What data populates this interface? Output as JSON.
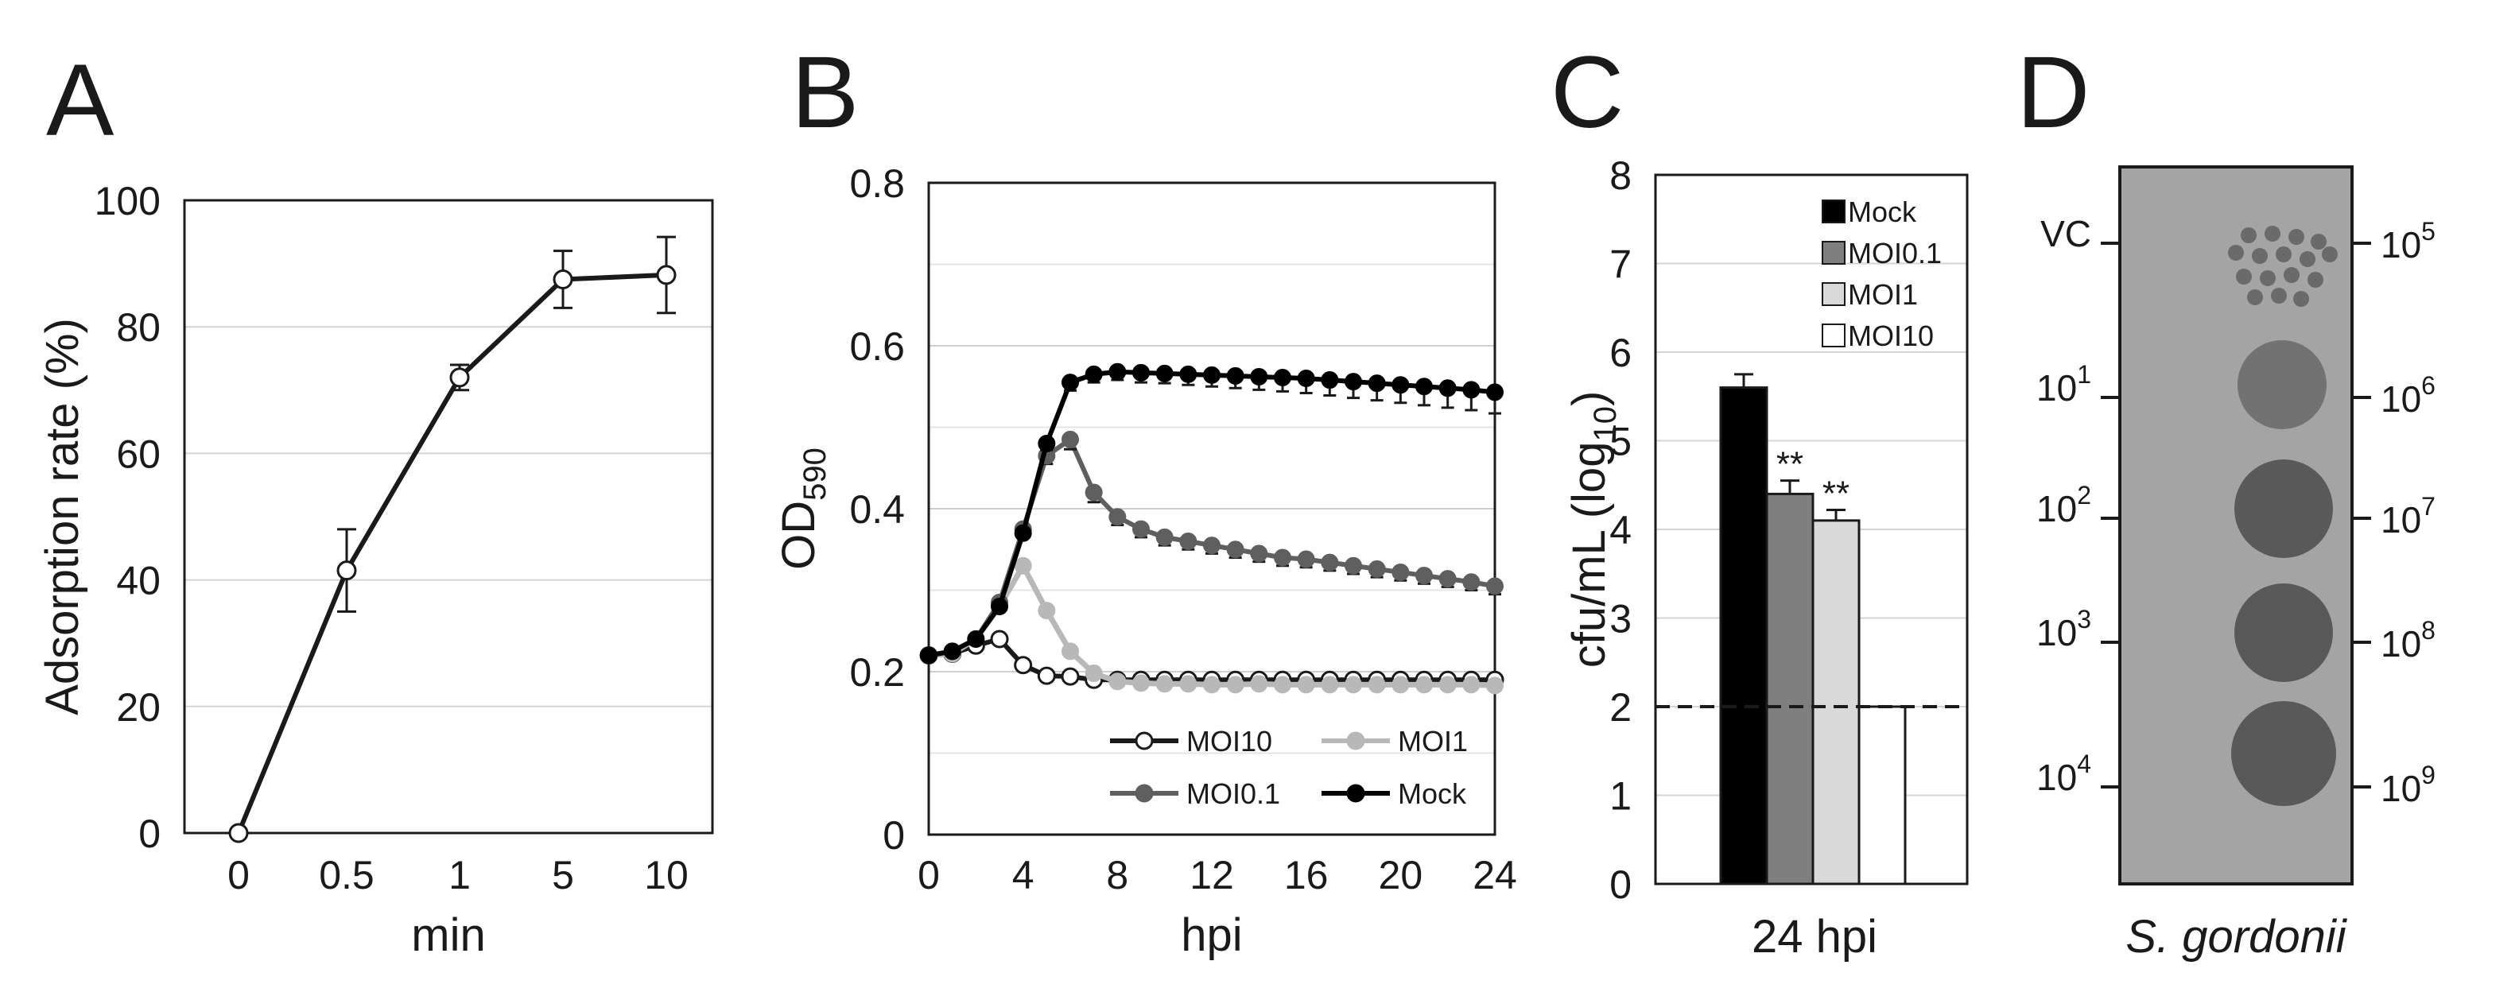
{
  "panels": {
    "A": {
      "letter": "A"
    },
    "B": {
      "letter": "B"
    },
    "C": {
      "letter": "C"
    },
    "D": {
      "letter": "D"
    }
  },
  "chart_data": [
    {
      "panel": "A",
      "type": "line",
      "categories": [
        "0",
        "0.5",
        "1",
        "5",
        "10"
      ],
      "series": [
        {
          "name": "Adsorption rate",
          "values": [
            0,
            41.5,
            72,
            87.5,
            88.2
          ],
          "errors": [
            0,
            6.5,
            2,
            4.5,
            6
          ]
        }
      ],
      "xlabel": "min",
      "ylabel": "Adsorption rate (%)",
      "ylim": [
        0,
        100
      ],
      "yticks": [
        0,
        20,
        40,
        60,
        80,
        100
      ],
      "grid": true
    },
    {
      "panel": "B",
      "type": "line",
      "x": [
        0,
        1,
        2,
        3,
        4,
        5,
        6,
        7,
        8,
        9,
        10,
        11,
        12,
        13,
        14,
        15,
        16,
        17,
        18,
        19,
        20,
        21,
        22,
        23,
        24
      ],
      "series": [
        {
          "name": "MOI10",
          "color": "#1a1a1a",
          "marker": "open-circle",
          "values": [
            0.22,
            0.222,
            0.232,
            0.24,
            0.208,
            0.195,
            0.194,
            0.19,
            0.19,
            0.19,
            0.19,
            0.19,
            0.19,
            0.19,
            0.19,
            0.19,
            0.19,
            0.19,
            0.19,
            0.19,
            0.19,
            0.19,
            0.19,
            0.19,
            0.19
          ]
        },
        {
          "name": "MOI1",
          "color": "#b8b8b8",
          "marker": "filled-circle",
          "values": [
            0.22,
            0.222,
            0.24,
            0.28,
            0.33,
            0.275,
            0.225,
            0.198,
            0.188,
            0.186,
            0.185,
            0.185,
            0.184,
            0.184,
            0.185,
            0.184,
            0.184,
            0.184,
            0.184,
            0.184,
            0.184,
            0.184,
            0.184,
            0.184,
            0.183
          ]
        },
        {
          "name": "MOI0.1",
          "color": "#5f5f5f",
          "marker": "filled-circle",
          "values": [
            0.22,
            0.225,
            0.24,
            0.285,
            0.375,
            0.465,
            0.485,
            0.42,
            0.39,
            0.375,
            0.365,
            0.36,
            0.355,
            0.35,
            0.345,
            0.34,
            0.338,
            0.334,
            0.33,
            0.326,
            0.322,
            0.318,
            0.314,
            0.31,
            0.305
          ],
          "errors": [
            0,
            0,
            0,
            0.005,
            0.008,
            0.01,
            0.012,
            0.012,
            0.01,
            0.01,
            0.01,
            0.01,
            0.01,
            0.01,
            0.01,
            0.01,
            0.01,
            0.01,
            0.01,
            0.01,
            0.01,
            0.01,
            0.01,
            0.01,
            0.01
          ]
        },
        {
          "name": "Mock",
          "color": "#000000",
          "marker": "filled-circle",
          "values": [
            0.22,
            0.225,
            0.24,
            0.28,
            0.37,
            0.48,
            0.555,
            0.565,
            0.568,
            0.567,
            0.566,
            0.565,
            0.564,
            0.563,
            0.562,
            0.561,
            0.56,
            0.558,
            0.556,
            0.554,
            0.552,
            0.55,
            0.548,
            0.546,
            0.543
          ],
          "errors": [
            0,
            0,
            0,
            0.005,
            0.005,
            0.008,
            0.01,
            0.01,
            0.01,
            0.012,
            0.012,
            0.013,
            0.014,
            0.015,
            0.016,
            0.017,
            0.018,
            0.019,
            0.02,
            0.021,
            0.022,
            0.023,
            0.024,
            0.025,
            0.026
          ]
        }
      ],
      "xlabel": "hpi",
      "ylabel_main": "OD",
      "ylabel_sub": "590",
      "xlim": [
        0,
        24
      ],
      "xticks": [
        0,
        4,
        8,
        12,
        16,
        20,
        24
      ],
      "ylim": [
        0,
        0.8
      ],
      "yticks": [
        "0",
        "0.2",
        "0.4",
        "0.6",
        "0.8"
      ],
      "grid": true,
      "legend_position": "bottom-right"
    },
    {
      "panel": "C",
      "type": "bar",
      "categories": [
        "24 hpi"
      ],
      "series": [
        {
          "name": "Mock",
          "value": 5.6,
          "error": 0.15,
          "color": "#000000",
          "annotation": ""
        },
        {
          "name": "MOI0.1",
          "value": 4.4,
          "error": 0.15,
          "color": "#7f7f7f",
          "annotation": "**"
        },
        {
          "name": "MOI1",
          "value": 4.1,
          "error": 0.12,
          "color": "#d9d9d9",
          "annotation": "**"
        },
        {
          "name": "MOI10",
          "value": 2.0,
          "error": 0,
          "color": "#ffffff",
          "annotation": ""
        }
      ],
      "xlabel": "24 hpi",
      "ylabel_main": "cfu/mL (log",
      "ylabel_sub": "10",
      "ylabel_end": ")",
      "ylim": [
        0,
        8
      ],
      "yticks": [
        0,
        1,
        2,
        3,
        4,
        5,
        6,
        7,
        8
      ],
      "detection_limit": 2,
      "grid": true,
      "legend_position": "top-right"
    }
  ],
  "plate": {
    "caption": "S. gordonii",
    "left_labels": [
      {
        "base": "VC",
        "exp": ""
      },
      {
        "base": "10",
        "exp": "1"
      },
      {
        "base": "10",
        "exp": "2"
      },
      {
        "base": "10",
        "exp": "3"
      },
      {
        "base": "10",
        "exp": "4"
      }
    ],
    "right_labels": [
      {
        "base": "10",
        "exp": "5"
      },
      {
        "base": "10",
        "exp": "6"
      },
      {
        "base": "10",
        "exp": "7"
      },
      {
        "base": "10",
        "exp": "8"
      },
      {
        "base": "10",
        "exp": "9"
      }
    ],
    "background_color": "#a4a4a4",
    "spot_color": "#595959"
  }
}
